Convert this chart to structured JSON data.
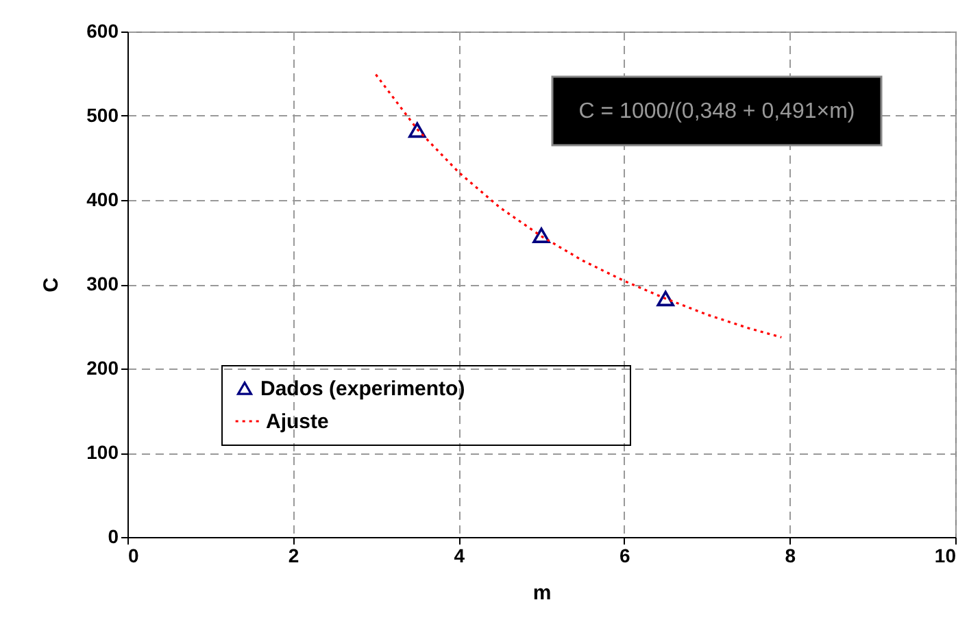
{
  "chart_data": {
    "type": "scatter",
    "xlabel": "m",
    "ylabel": "C",
    "xlim": [
      0,
      10
    ],
    "xticks": [
      0,
      2,
      4,
      6,
      8,
      10
    ],
    "ylim": [
      0,
      600
    ],
    "yticks": [
      0,
      100,
      200,
      300,
      400,
      500,
      600
    ],
    "grid": true,
    "legend": "bottom left",
    "annotations": [
      "C = 1000/(0,348 + 0,491×m)"
    ],
    "series": [
      {
        "name": "Dados (experimento)",
        "marker": "triangle",
        "color": "#000080",
        "x": [
          3.5,
          5,
          6.5
        ],
        "values": [
          483,
          358,
          283
        ]
      },
      {
        "name": "Ajuste",
        "type": "line",
        "marker": "none",
        "line_style": "dotted",
        "color": "#ff0000",
        "x": [
          3,
          3.5,
          4,
          4.5,
          5,
          5.5,
          6,
          6.5,
          7,
          7.5,
          7.9
        ],
        "values": [
          549,
          484,
          433,
          391,
          357,
          328,
          304,
          283,
          264,
          248,
          237
        ]
      }
    ]
  }
}
